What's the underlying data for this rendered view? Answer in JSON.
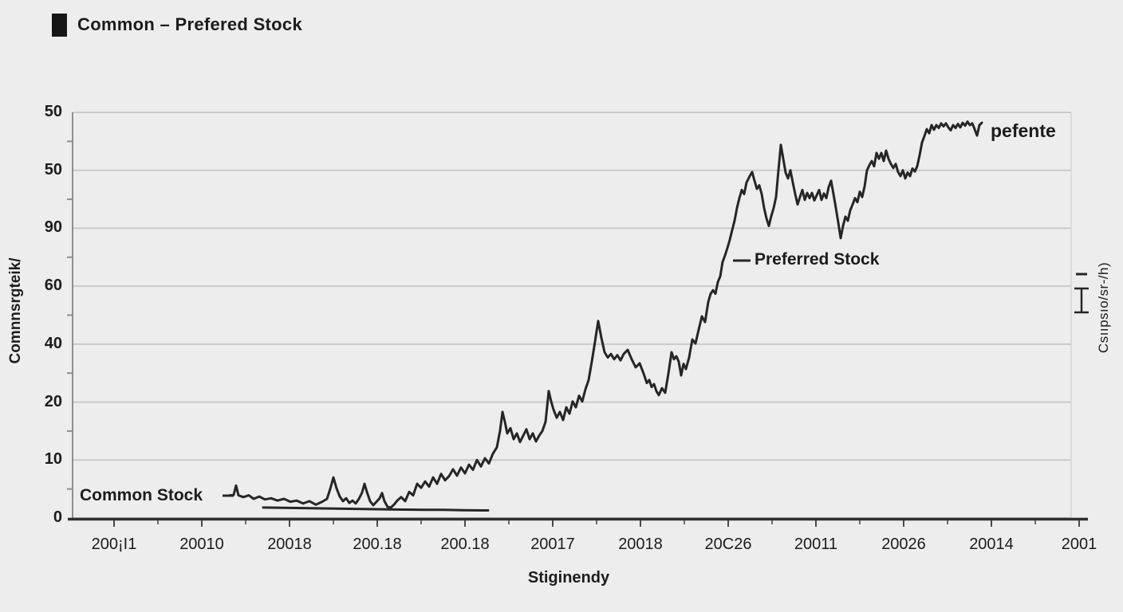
{
  "title": "Common – Prefered Stock",
  "colors": {
    "background": "#ecedec",
    "line": "#262626",
    "grid": "#c9cac8",
    "axis_x": "#2f2f2f",
    "axis_y": "#8f8f8f",
    "text": "#1c1c1c",
    "legend_swatch": "#161616"
  },
  "legend": {
    "swatch": "black-square",
    "label": "Common – Prefered Stock"
  },
  "y_axis": {
    "title": "Comnnsrgteik/",
    "tick_labels": [
      "50",
      "50",
      "90",
      "60",
      "40",
      "20",
      "10",
      "0"
    ]
  },
  "x_axis": {
    "title": "Stiginendy",
    "tick_labels": [
      "200¡I1",
      "20010",
      "20018",
      "200.18",
      "200.18",
      "20017",
      "20018",
      "20C26",
      "20011",
      "20026",
      "20014",
      "2001"
    ]
  },
  "right_axis": {
    "title": "Csııpsıo/sr-/h)",
    "glyphs": [
      "short-dash",
      "capped-error-bar"
    ]
  },
  "annotations": {
    "common": "Common Stock",
    "preferred": "Preferred Stock",
    "line_end": "pefente"
  },
  "chart_data": {
    "type": "line",
    "title": "Common – Prefered Stock",
    "xlabel": "Stiginendy",
    "ylabel": "Comnnsrgteik/",
    "x_tick_labels": [
      "200¡I1",
      "20010",
      "20018",
      "200.18",
      "200.18",
      "20017",
      "20018",
      "20C26",
      "20011",
      "20026",
      "20014",
      "2001"
    ],
    "y_tick_labels": [
      "50",
      "50",
      "90",
      "60",
      "40",
      "20",
      "10",
      "0"
    ],
    "ylim": [
      0,
      70
    ],
    "x_unit": "px-along-axis",
    "grid": true,
    "legend_position": "top-left",
    "series": [
      {
        "name": "Preferred Stock",
        "points": [
          [
            288,
            3.9
          ],
          [
            293,
            4.0
          ],
          [
            296,
            5.6
          ],
          [
            299,
            3.9
          ],
          [
            305,
            3.6
          ],
          [
            312,
            3.9
          ],
          [
            318,
            3.3
          ],
          [
            325,
            3.7
          ],
          [
            332,
            3.2
          ],
          [
            340,
            3.4
          ],
          [
            348,
            3.0
          ],
          [
            356,
            3.3
          ],
          [
            364,
            2.8
          ],
          [
            372,
            3.0
          ],
          [
            380,
            2.5
          ],
          [
            388,
            2.9
          ],
          [
            396,
            2.3
          ],
          [
            404,
            2.8
          ],
          [
            410,
            3.3
          ],
          [
            414,
            5.0
          ],
          [
            418,
            7.0
          ],
          [
            422,
            5.1
          ],
          [
            426,
            3.7
          ],
          [
            430,
            2.9
          ],
          [
            434,
            3.4
          ],
          [
            438,
            2.6
          ],
          [
            442,
            3.0
          ],
          [
            446,
            2.5
          ],
          [
            450,
            3.3
          ],
          [
            454,
            4.4
          ],
          [
            457,
            5.9
          ],
          [
            460,
            4.5
          ],
          [
            464,
            2.9
          ],
          [
            468,
            2.2
          ],
          [
            472,
            2.8
          ],
          [
            476,
            3.4
          ],
          [
            479,
            4.3
          ],
          [
            482,
            2.9
          ],
          [
            486,
            1.9
          ],
          [
            490,
            1.8
          ],
          [
            494,
            2.3
          ],
          [
            498,
            3.0
          ],
          [
            503,
            3.6
          ],
          [
            508,
            2.9
          ],
          [
            513,
            4.5
          ],
          [
            518,
            3.9
          ],
          [
            523,
            5.9
          ],
          [
            528,
            5.2
          ],
          [
            533,
            6.3
          ],
          [
            538,
            5.4
          ],
          [
            543,
            7.0
          ],
          [
            548,
            5.9
          ],
          [
            553,
            7.6
          ],
          [
            558,
            6.5
          ],
          [
            563,
            7.2
          ],
          [
            568,
            8.4
          ],
          [
            573,
            7.3
          ],
          [
            578,
            8.7
          ],
          [
            583,
            7.7
          ],
          [
            588,
            9.2
          ],
          [
            593,
            8.3
          ],
          [
            598,
            10.0
          ],
          [
            603,
            8.9
          ],
          [
            608,
            10.3
          ],
          [
            613,
            9.4
          ],
          [
            618,
            11.1
          ],
          [
            623,
            12.2
          ],
          [
            627,
            15.1
          ],
          [
            630,
            18.3
          ],
          [
            633,
            16.6
          ],
          [
            636,
            14.6
          ],
          [
            640,
            15.5
          ],
          [
            644,
            13.6
          ],
          [
            648,
            14.6
          ],
          [
            652,
            13.1
          ],
          [
            656,
            14.2
          ],
          [
            660,
            15.3
          ],
          [
            664,
            13.6
          ],
          [
            668,
            14.6
          ],
          [
            672,
            13.2
          ],
          [
            676,
            14.2
          ],
          [
            680,
            15.0
          ],
          [
            684,
            16.6
          ],
          [
            688,
            21.9
          ],
          [
            691,
            20.1
          ],
          [
            694,
            18.7
          ],
          [
            698,
            17.3
          ],
          [
            702,
            18.3
          ],
          [
            706,
            16.9
          ],
          [
            710,
            19.1
          ],
          [
            714,
            18.0
          ],
          [
            718,
            20.1
          ],
          [
            722,
            19.1
          ],
          [
            726,
            21.1
          ],
          [
            730,
            20.1
          ],
          [
            734,
            22.2
          ],
          [
            738,
            23.8
          ],
          [
            742,
            27.0
          ],
          [
            746,
            30.4
          ],
          [
            750,
            34.0
          ],
          [
            754,
            31.1
          ],
          [
            758,
            28.6
          ],
          [
            762,
            27.7
          ],
          [
            766,
            28.3
          ],
          [
            770,
            27.4
          ],
          [
            774,
            28.1
          ],
          [
            778,
            27.2
          ],
          [
            782,
            28.3
          ],
          [
            787,
            29.0
          ],
          [
            792,
            27.4
          ],
          [
            797,
            26.0
          ],
          [
            802,
            26.7
          ],
          [
            807,
            24.9
          ],
          [
            811,
            23.3
          ],
          [
            814,
            23.8
          ],
          [
            817,
            22.6
          ],
          [
            820,
            23.1
          ],
          [
            823,
            21.9
          ],
          [
            826,
            21.2
          ],
          [
            830,
            22.4
          ],
          [
            834,
            21.6
          ],
          [
            838,
            24.9
          ],
          [
            842,
            28.6
          ],
          [
            845,
            27.4
          ],
          [
            848,
            27.9
          ],
          [
            851,
            27.0
          ],
          [
            854,
            24.6
          ],
          [
            857,
            26.6
          ],
          [
            860,
            25.7
          ],
          [
            864,
            27.7
          ],
          [
            868,
            30.8
          ],
          [
            872,
            30.1
          ],
          [
            876,
            32.5
          ],
          [
            880,
            34.8
          ],
          [
            884,
            33.8
          ],
          [
            888,
            37.3
          ],
          [
            891,
            38.7
          ],
          [
            894,
            39.3
          ],
          [
            897,
            38.7
          ],
          [
            900,
            40.7
          ],
          [
            903,
            41.7
          ],
          [
            906,
            44.2
          ],
          [
            909,
            45.3
          ],
          [
            912,
            46.6
          ],
          [
            915,
            48.0
          ],
          [
            918,
            49.7
          ],
          [
            921,
            51.3
          ],
          [
            924,
            53.5
          ],
          [
            927,
            55.2
          ],
          [
            930,
            56.6
          ],
          [
            933,
            55.9
          ],
          [
            936,
            57.9
          ],
          [
            940,
            59.0
          ],
          [
            943,
            59.7
          ],
          [
            946,
            58.2
          ],
          [
            949,
            56.8
          ],
          [
            952,
            57.4
          ],
          [
            955,
            55.9
          ],
          [
            958,
            53.5
          ],
          [
            961,
            51.7
          ],
          [
            964,
            50.4
          ],
          [
            967,
            52.1
          ],
          [
            970,
            53.5
          ],
          [
            973,
            55.4
          ],
          [
            976,
            60.0
          ],
          [
            979,
            64.4
          ],
          [
            982,
            62.0
          ],
          [
            985,
            59.6
          ],
          [
            988,
            58.6
          ],
          [
            991,
            60.0
          ],
          [
            994,
            57.9
          ],
          [
            997,
            55.9
          ],
          [
            1000,
            54.1
          ],
          [
            1003,
            55.4
          ],
          [
            1006,
            56.6
          ],
          [
            1009,
            54.9
          ],
          [
            1012,
            56.1
          ],
          [
            1015,
            55.2
          ],
          [
            1018,
            56.1
          ],
          [
            1021,
            54.8
          ],
          [
            1024,
            55.7
          ],
          [
            1027,
            56.6
          ],
          [
            1030,
            54.9
          ],
          [
            1033,
            56.0
          ],
          [
            1036,
            55.2
          ],
          [
            1039,
            57.1
          ],
          [
            1042,
            58.2
          ],
          [
            1045,
            55.9
          ],
          [
            1048,
            53.5
          ],
          [
            1051,
            51.0
          ],
          [
            1054,
            48.3
          ],
          [
            1057,
            50.4
          ],
          [
            1060,
            52.0
          ],
          [
            1063,
            51.3
          ],
          [
            1066,
            53.1
          ],
          [
            1069,
            54.1
          ],
          [
            1072,
            55.2
          ],
          [
            1075,
            54.5
          ],
          [
            1078,
            56.3
          ],
          [
            1081,
            55.4
          ],
          [
            1084,
            57.2
          ],
          [
            1087,
            60.0
          ],
          [
            1090,
            60.9
          ],
          [
            1093,
            61.6
          ],
          [
            1096,
            60.7
          ],
          [
            1099,
            63.0
          ],
          [
            1102,
            62.0
          ],
          [
            1105,
            63.0
          ],
          [
            1108,
            61.6
          ],
          [
            1111,
            63.4
          ],
          [
            1114,
            62.0
          ],
          [
            1117,
            61.1
          ],
          [
            1120,
            60.4
          ],
          [
            1123,
            61.1
          ],
          [
            1126,
            59.7
          ],
          [
            1129,
            59.0
          ],
          [
            1132,
            60.0
          ],
          [
            1135,
            58.6
          ],
          [
            1138,
            59.6
          ],
          [
            1141,
            59.0
          ],
          [
            1144,
            60.3
          ],
          [
            1147,
            59.8
          ],
          [
            1150,
            60.7
          ],
          [
            1153,
            62.6
          ],
          [
            1156,
            64.8
          ],
          [
            1159,
            65.9
          ],
          [
            1162,
            67.1
          ],
          [
            1165,
            66.4
          ],
          [
            1168,
            67.8
          ],
          [
            1171,
            67.0
          ],
          [
            1174,
            67.8
          ],
          [
            1177,
            67.3
          ],
          [
            1180,
            68.1
          ],
          [
            1183,
            67.6
          ],
          [
            1186,
            68.1
          ],
          [
            1189,
            67.4
          ],
          [
            1192,
            66.9
          ],
          [
            1195,
            67.8
          ],
          [
            1198,
            67.3
          ],
          [
            1201,
            68.0
          ],
          [
            1204,
            67.4
          ],
          [
            1207,
            68.2
          ],
          [
            1210,
            67.7
          ],
          [
            1213,
            68.4
          ],
          [
            1216,
            67.8
          ],
          [
            1219,
            68.1
          ],
          [
            1222,
            67.1
          ],
          [
            1225,
            66.0
          ],
          [
            1228,
            67.8
          ],
          [
            1231,
            68.2
          ]
        ]
      },
      {
        "name": "Common Stock",
        "points": [
          [
            330,
            1.8
          ],
          [
            355,
            1.75
          ],
          [
            380,
            1.7
          ],
          [
            405,
            1.65
          ],
          [
            430,
            1.6
          ],
          [
            455,
            1.55
          ],
          [
            480,
            1.5
          ],
          [
            505,
            1.45
          ],
          [
            530,
            1.4
          ],
          [
            555,
            1.4
          ],
          [
            580,
            1.35
          ],
          [
            605,
            1.3
          ],
          [
            612,
            1.3
          ]
        ]
      }
    ]
  }
}
